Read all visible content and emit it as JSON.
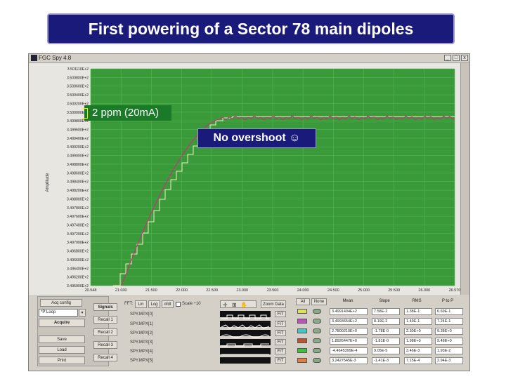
{
  "slide": {
    "title": "First powering of a Sector 78 main dipoles",
    "annotation_ppm": "2 ppm (20mA)",
    "annotation_note": "No overshoot ☺"
  },
  "window": {
    "title": "FGC Spy 4.8",
    "buttons": {
      "minimize": "_",
      "maximize": "□",
      "close": "x"
    }
  },
  "plot": {
    "y_axis_label": "Amplitude",
    "y_ticks": [
      "3.501110E+2",
      "3.500800E+2",
      "3.500600E+2",
      "3.500400E+2",
      "3.500200E+2",
      "3.500000E+2",
      "3.499800E+2",
      "3.499600E+2",
      "3.499400E+2",
      "3.499200E+2",
      "3.499000E+2",
      "3.498800E+2",
      "3.498600E+2",
      "3.498400E+2",
      "3.498200E+2",
      "3.498000E+2",
      "3.497800E+2",
      "3.497600E+2",
      "3.497400E+2",
      "3.497200E+2",
      "3.497000E+2",
      "3.496800E+2",
      "3.496600E+2",
      "3.496400E+2",
      "3.496200E+2",
      "3.495900E+2"
    ],
    "x_ticks": [
      "20.548",
      "21.000",
      "21.500",
      "22.000",
      "22.500",
      "23.000",
      "23.500",
      "24.000",
      "24.500",
      "25.000",
      "25.500",
      "26.000",
      "26.570"
    ],
    "bg_color": "#3a9a3a",
    "grid_color": "#4fb84f",
    "ref_color": "#f0f0c0",
    "meas_color": "#e0208a"
  },
  "controls": {
    "acq_config": "Acq config",
    "loop_value": "*P:Loop",
    "acquire": "Acquire",
    "save": "Save",
    "load": "Load",
    "print": "Print",
    "signals": "Signals",
    "recall": [
      "Recall 1",
      "Recall 2",
      "Recall 3",
      "Recall 4"
    ],
    "fft_label": "FFT:",
    "lin": "Lin",
    "log": "Log",
    "ddt": "d/dt",
    "scale": "Scale ÷10",
    "zoom_data": "Zoom Data",
    "signals_list": [
      "SPY.MPX[0]",
      "SPY.MPX[1]",
      "SPY.MPX[2]",
      "SPY.MPX[3]",
      "SPY.MPX[4]",
      "SPY.MPX[5]"
    ],
    "fit": "FIT",
    "all": "All",
    "none": "None"
  },
  "stats": {
    "headers": [
      "Mean",
      "Slope",
      "RMS",
      "P to P"
    ],
    "rows": [
      {
        "color": "#e0e060",
        "mean": "3.4991404E+2",
        "slope": "7.58E-2",
        "rms": "1.38E-1",
        "ptp": "6.69E-1"
      },
      {
        "color": "#c050c0",
        "mean": "3.4993654E+2",
        "slope": "8.19E-2",
        "rms": "1.49E-1",
        "ptp": "7.24E-1"
      },
      {
        "color": "#40c8c8",
        "mean": "2.7800210E+0",
        "slope": "-1.78E-0",
        "rms": "2.30E+0",
        "ptp": "9.38E+0"
      },
      {
        "color": "#c05030",
        "mean": "1.8926447E+0",
        "slope": "-1.81E-0",
        "rms": "1.98E+0",
        "ptp": "9.48E+0"
      },
      {
        "color": "#40c040",
        "mean": "-4.4645399E-4",
        "slope": "9.05E-5",
        "rms": "3.46E-3",
        "ptp": "1.93E-2"
      },
      {
        "color": "#e08040",
        "mean": "3.2427545E-3",
        "slope": "-1.41E-3",
        "rms": "7.15E-4",
        "ptp": "2.94E-3"
      }
    ]
  }
}
